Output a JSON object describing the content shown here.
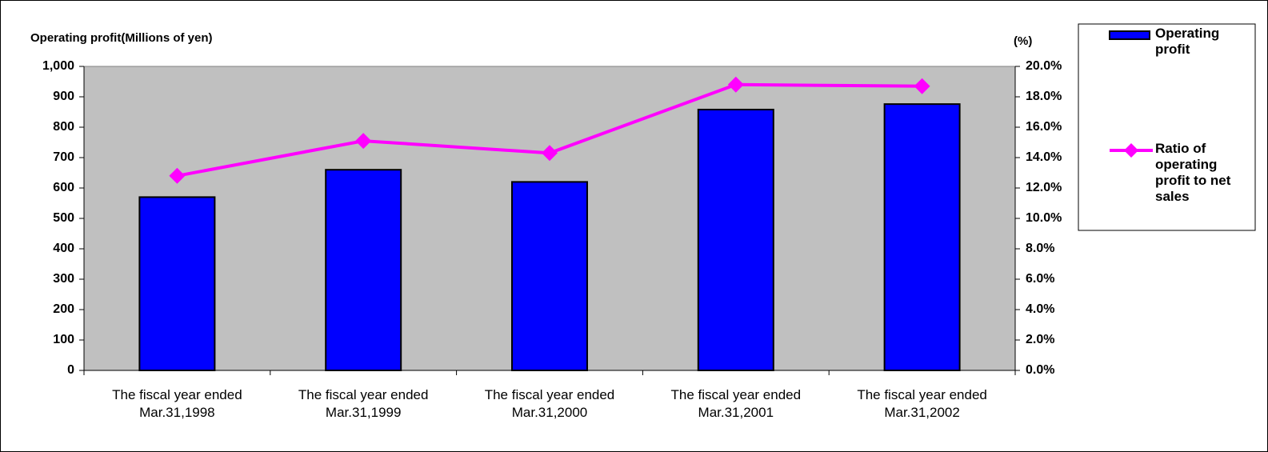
{
  "chart_data": {
    "type": "bar",
    "y_label": "Operating profit(Millions of yen)",
    "y2_label": "(%)",
    "categories": [
      "The fiscal year ended Mar.31,1998",
      "The fiscal year ended Mar.31,1999",
      "The fiscal year ended Mar.31,2000",
      "The fiscal year ended Mar.31,2001",
      "The fiscal year ended Mar.31,2002"
    ],
    "series": [
      {
        "name": "Operating profit",
        "type": "bar",
        "color": "#0000ff",
        "values": [
          570,
          660,
          620,
          858,
          876
        ]
      },
      {
        "name": "Ratio of operating profit to net sales",
        "type": "line",
        "axis": "y2",
        "color": "#ff00ff",
        "values": [
          12.8,
          15.1,
          14.3,
          18.8,
          18.7
        ]
      }
    ],
    "ylim": [
      0,
      1000
    ],
    "yticks": [
      0,
      100,
      200,
      300,
      400,
      500,
      600,
      700,
      800,
      900,
      {
        "value": 1000,
        "label": "1,000"
      }
    ],
    "y2lim": [
      0,
      20
    ],
    "y2ticks": [
      {
        "value": 0,
        "label": "0.0%"
      },
      {
        "value": 2,
        "label": "2.0%"
      },
      {
        "value": 4,
        "label": "4.0%"
      },
      {
        "value": 6,
        "label": "6.0%"
      },
      {
        "value": 8,
        "label": "8.0%"
      },
      {
        "value": 10,
        "label": "10.0%"
      },
      {
        "value": 12,
        "label": "12.0%"
      },
      {
        "value": 14,
        "label": "14.0%"
      },
      {
        "value": 16,
        "label": "16.0%"
      },
      {
        "value": 18,
        "label": "18.0%"
      },
      {
        "value": 20,
        "label": "20.0%"
      }
    ],
    "plot_background": "#c0c0c0",
    "grid": false,
    "legend": "right"
  }
}
